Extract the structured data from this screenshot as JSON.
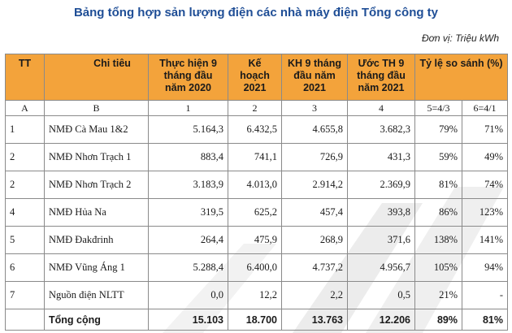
{
  "title": "Bảng tổng hợp sản lượng điện các nhà máy điện Tổng công ty",
  "unit": "Đơn vị: Triệu kWh",
  "header": {
    "tt": "TT",
    "indicator": "Chi tiêu",
    "col1": "Thực hiện 9 tháng đầu năm 2020",
    "col2": "Kế hoạch 2021",
    "col3": "KH 9 tháng đầu năm 2021",
    "col4": "Ước TH 9 tháng đầu năm 2021",
    "compare": "Tỷ lệ so sánh (%)"
  },
  "letters": [
    "A",
    "B",
    "1",
    "2",
    "3",
    "4",
    "5=4/3",
    "6=4/1"
  ],
  "rows": [
    {
      "tt": "1",
      "name": "NMĐ Cà Mau 1&2",
      "c1": "5.164,3",
      "c2": "6.432,5",
      "c3": "4.655,8",
      "c4": "3.682,3",
      "r5": "79%",
      "r6": "71%"
    },
    {
      "tt": "2",
      "name": "NMĐ Nhơn Trạch 1",
      "c1": "883,4",
      "c2": "741,1",
      "c3": "726,9",
      "c4": "431,3",
      "r5": "59%",
      "r6": "49%"
    },
    {
      "tt": "2",
      "name": "NMĐ Nhơn Trạch 2",
      "c1": "3.183,9",
      "c2": "4.013,0",
      "c3": "2.914,2",
      "c4": "2.369,9",
      "r5": "81%",
      "r6": "74%"
    },
    {
      "tt": "4",
      "name": "NMĐ Hủa Na",
      "c1": "319,5",
      "c2": "625,2",
      "c3": "457,4",
      "c4": "393,8",
      "r5": "86%",
      "r6": "123%"
    },
    {
      "tt": "5",
      "name": "NMĐ Đakđrinh",
      "c1": "264,4",
      "c2": "475,9",
      "c3": "268,9",
      "c4": "371,6",
      "r5": "138%",
      "r6": "141%"
    },
    {
      "tt": "6",
      "name": "NMĐ Vũng Áng 1",
      "c1": "5.288,4",
      "c2": "6.400,0",
      "c3": "4.737,2",
      "c4": "4.956,7",
      "r5": "105%",
      "r6": "94%"
    },
    {
      "tt": "7",
      "name": "Nguồn điện NLTT",
      "c1": "0,0",
      "c2": "12,2",
      "c3": "2,2",
      "c4": "0,5",
      "r5": "21%",
      "r6": "-"
    }
  ],
  "total": {
    "name": "Tổng cộng",
    "c1": "15.103",
    "c2": "18.700",
    "c3": "13.763",
    "c4": "12.206",
    "r5": "89%",
    "r6": "81%"
  }
}
